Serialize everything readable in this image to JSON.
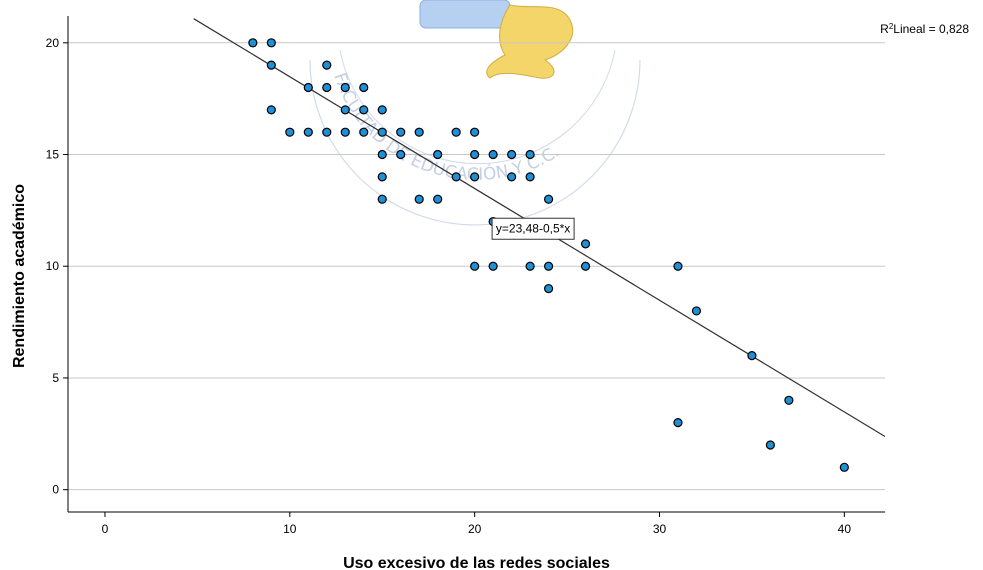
{
  "chart_data": {
    "type": "scatter",
    "title": "",
    "xlabel": "Uso excesivo de las redes sociales",
    "ylabel": "Rendimiento académico",
    "xlim": [
      -2,
      42.2
    ],
    "ylim": [
      -1,
      21.2
    ],
    "xticks": [
      0,
      10,
      20,
      30,
      40
    ],
    "yticks": [
      0,
      5,
      10,
      15,
      20
    ],
    "grid": "horizontal",
    "colors": {
      "point_fill": "#1f8fd6",
      "point_stroke": "#000000",
      "gridline": "#c8c8c8",
      "fit_line": "#333333"
    },
    "points": [
      [
        8,
        20
      ],
      [
        9,
        20
      ],
      [
        9,
        19
      ],
      [
        9,
        17
      ],
      [
        10,
        16
      ],
      [
        11,
        16
      ],
      [
        11,
        18
      ],
      [
        12,
        16
      ],
      [
        12,
        18
      ],
      [
        12,
        19
      ],
      [
        13,
        16
      ],
      [
        13,
        17
      ],
      [
        13,
        18
      ],
      [
        14,
        16
      ],
      [
        14,
        17
      ],
      [
        14,
        18
      ],
      [
        15,
        17
      ],
      [
        15,
        16
      ],
      [
        15,
        15
      ],
      [
        15,
        14
      ],
      [
        15,
        13
      ],
      [
        16,
        16
      ],
      [
        16,
        15
      ],
      [
        17,
        16
      ],
      [
        17,
        13
      ],
      [
        18,
        15
      ],
      [
        18,
        13
      ],
      [
        19,
        16
      ],
      [
        19,
        14
      ],
      [
        20,
        16
      ],
      [
        20,
        15
      ],
      [
        20,
        14
      ],
      [
        20,
        10
      ],
      [
        21,
        15
      ],
      [
        21,
        12
      ],
      [
        21,
        10
      ],
      [
        22,
        15
      ],
      [
        22,
        14
      ],
      [
        23,
        15
      ],
      [
        23,
        14
      ],
      [
        23,
        10
      ],
      [
        24,
        13
      ],
      [
        24,
        10
      ],
      [
        24,
        9
      ],
      [
        26,
        11
      ],
      [
        26,
        10
      ],
      [
        31,
        10
      ],
      [
        31,
        3
      ],
      [
        32,
        8
      ],
      [
        35,
        6
      ],
      [
        36,
        2
      ],
      [
        37,
        4
      ],
      [
        40,
        1
      ]
    ],
    "fit_line": {
      "intercept": 23.48,
      "slope": -0.5,
      "x_range": [
        4.8,
        42.2
      ]
    },
    "equation_label": "y=23,48-0,5*x",
    "equation_at": [
      23,
      11.7
    ],
    "r2_label": "Lineal = 0,828"
  },
  "watermark": {
    "text": "FACULTAD DE EDUCACIÓN Y C.C."
  }
}
